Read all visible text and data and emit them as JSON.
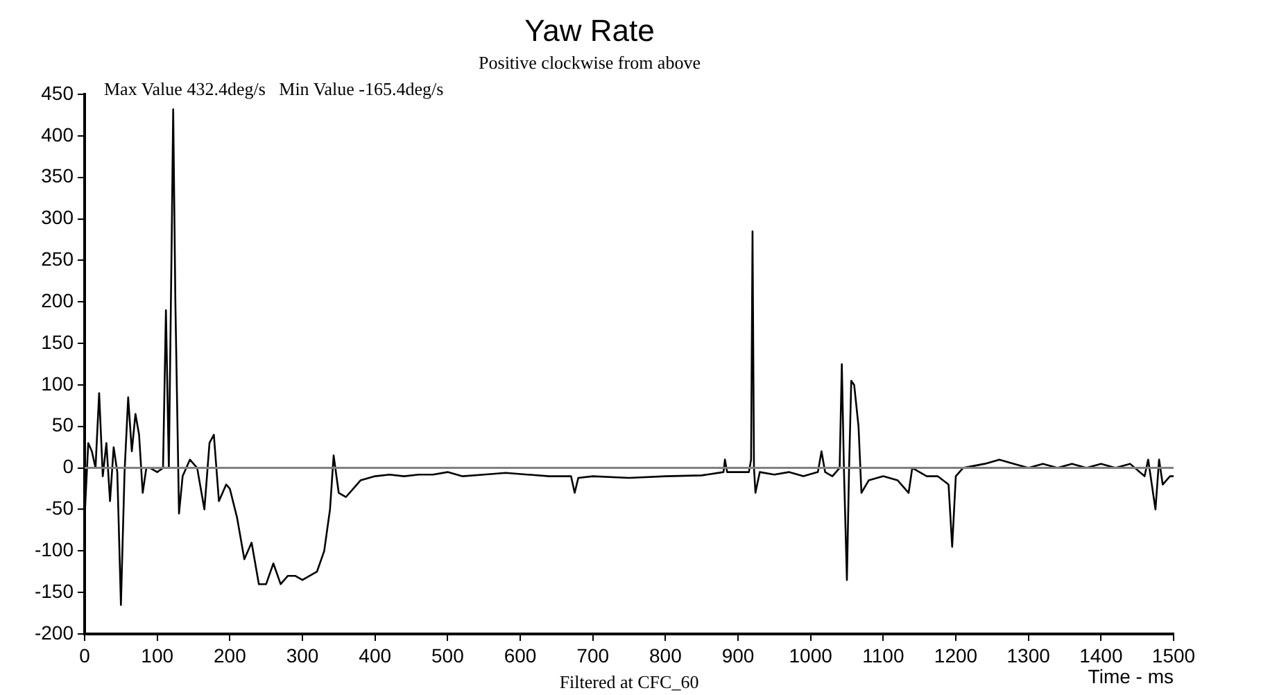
{
  "chart_data": {
    "type": "line",
    "title": "Yaw Rate",
    "subtitle": "Positive clockwise from above",
    "xlabel": "Time - ms",
    "annotations": [
      "Max Value 432.4deg/s   Min Value -165.4deg/s",
      "Filtered at CFC_60"
    ],
    "x": [
      0,
      5,
      10,
      15,
      20,
      25,
      30,
      35,
      40,
      45,
      50,
      55,
      60,
      65,
      70,
      75,
      80,
      85,
      90,
      100,
      108,
      112,
      116,
      120,
      122,
      125,
      130,
      135,
      145,
      155,
      165,
      172,
      178,
      185,
      195,
      200,
      210,
      220,
      230,
      240,
      250,
      260,
      270,
      280,
      290,
      300,
      310,
      320,
      330,
      338,
      343,
      350,
      360,
      370,
      380,
      400,
      420,
      440,
      460,
      480,
      500,
      520,
      550,
      580,
      610,
      640,
      670,
      675,
      680,
      700,
      750,
      800,
      850,
      880,
      882,
      885,
      915,
      918,
      920,
      922,
      924,
      930,
      950,
      970,
      990,
      1010,
      1015,
      1020,
      1030,
      1040,
      1043,
      1046,
      1050,
      1053,
      1056,
      1060,
      1066,
      1070,
      1080,
      1100,
      1120,
      1135,
      1140,
      1150,
      1160,
      1175,
      1190,
      1195,
      1200,
      1210,
      1240,
      1260,
      1280,
      1300,
      1320,
      1340,
      1360,
      1380,
      1400,
      1420,
      1440,
      1460,
      1465,
      1475,
      1480,
      1485,
      1495,
      1500
    ],
    "series": [
      {
        "color": "#000000",
        "values": [
          -60,
          30,
          20,
          0,
          90,
          -10,
          30,
          -40,
          25,
          -5,
          -165,
          -5,
          85,
          20,
          65,
          40,
          -30,
          0,
          0,
          -5,
          0,
          190,
          0,
          280,
          432,
          200,
          -55,
          -10,
          10,
          0,
          -50,
          30,
          40,
          -40,
          -20,
          -25,
          -60,
          -110,
          -90,
          -140,
          -140,
          -115,
          -140,
          -130,
          -130,
          -135,
          -130,
          -125,
          -100,
          -50,
          15,
          -30,
          -35,
          -25,
          -15,
          -10,
          -8,
          -10,
          -8,
          -8,
          -5,
          -10,
          -8,
          -6,
          -8,
          -10,
          -10,
          -30,
          -12,
          -10,
          -12,
          -10,
          -9,
          -5,
          10,
          -5,
          -5,
          10,
          285,
          0,
          -30,
          -5,
          -8,
          -5,
          -10,
          -5,
          20,
          -5,
          -10,
          0,
          125,
          -5,
          -135,
          0,
          105,
          100,
          50,
          -30,
          -15,
          -10,
          -15,
          -30,
          0,
          -5,
          -10,
          -10,
          -20,
          -95,
          -10,
          0,
          5,
          10,
          5,
          0,
          5,
          0,
          5,
          0,
          5,
          0,
          5,
          -10,
          10,
          -50,
          10,
          -20,
          -10,
          -10
        ]
      }
    ],
    "xlim": [
      0,
      1500
    ],
    "xticks": [
      0,
      100,
      200,
      300,
      400,
      500,
      600,
      700,
      800,
      900,
      1000,
      1100,
      1200,
      1300,
      1400,
      1500
    ],
    "ylim": [
      -200,
      450
    ],
    "yticks": [
      -200,
      -150,
      -100,
      -50,
      0,
      50,
      100,
      150,
      200,
      250,
      300,
      350,
      400,
      450
    ],
    "ref_lines": [
      {
        "axis": "y",
        "value": 0,
        "color": "#808080"
      }
    ],
    "grid": false,
    "legend": false,
    "marker": "none",
    "line_style": "solid"
  }
}
